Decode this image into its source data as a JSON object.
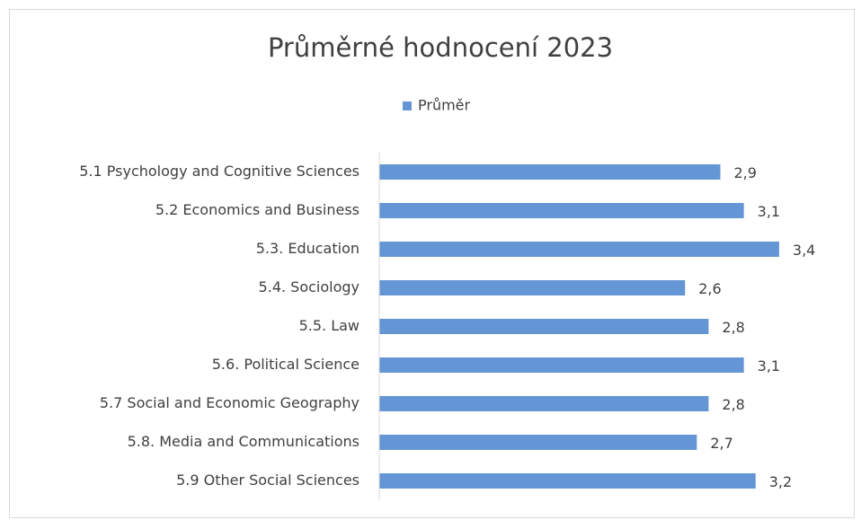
{
  "chart_data": {
    "type": "barh",
    "title": "Průměrné hodnocení 2023",
    "categories": [
      "5.1 Psychology and Cognitive Sciences",
      "5.2 Economics and Business",
      "5.3. Education",
      "5.4. Sociology",
      "5.5. Law",
      "5.6. Political Science",
      "5.7 Social and Economic Geography",
      "5.8. Media and Communications",
      "5.9 Other Social Sciences"
    ],
    "series": [
      {
        "name": "Průměr",
        "color": "#6495d4",
        "values": [
          2.9,
          3.1,
          3.4,
          2.6,
          2.8,
          3.1,
          2.8,
          2.7,
          3.2
        ],
        "value_labels": [
          "2,9",
          "3,1",
          "3,4",
          "2,6",
          "2,8",
          "3,1",
          "2,8",
          "2,7",
          "3,2"
        ]
      }
    ],
    "xlim": [
      0,
      3.5
    ],
    "legend": "top"
  }
}
